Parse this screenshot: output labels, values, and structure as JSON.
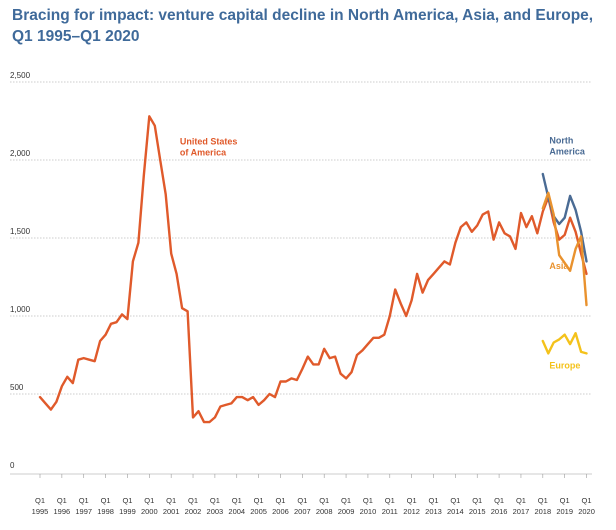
{
  "chart_data": {
    "type": "line",
    "title": "Bracing for impact: venture capital decline in North America, Asia, and Europe, Q1 1995–Q1 2020",
    "xlabel": "",
    "ylabel": "",
    "ylim": [
      0,
      2500
    ],
    "yticks": [
      0,
      500,
      1000,
      1500,
      2000,
      2500
    ],
    "yticklabels": [
      "0",
      "500",
      "1,000",
      "1,500",
      "2,000",
      "2,500"
    ],
    "xlim": [
      1995,
      2020.25
    ],
    "xticks": [
      {
        "q": "Q1",
        "year": "1995",
        "x": 1995
      },
      {
        "q": "Q1",
        "year": "1996",
        "x": 1996
      },
      {
        "q": "Q1",
        "year": "1997",
        "x": 1997
      },
      {
        "q": "Q1",
        "year": "1998",
        "x": 1998
      },
      {
        "q": "Q1",
        "year": "1999",
        "x": 1999
      },
      {
        "q": "Q1",
        "year": "2000",
        "x": 2000
      },
      {
        "q": "Q1",
        "year": "2001",
        "x": 2001
      },
      {
        "q": "Q1",
        "year": "2002",
        "x": 2002
      },
      {
        "q": "Q1",
        "year": "2003",
        "x": 2003
      },
      {
        "q": "Q1",
        "year": "2004",
        "x": 2004
      },
      {
        "q": "Q1",
        "year": "2005",
        "x": 2005
      },
      {
        "q": "Q1",
        "year": "2006",
        "x": 2006
      },
      {
        "q": "Q1",
        "year": "2007",
        "x": 2007
      },
      {
        "q": "Q1",
        "year": "2008",
        "x": 2008
      },
      {
        "q": "Q1",
        "year": "2009",
        "x": 2009
      },
      {
        "q": "Q1",
        "year": "2010",
        "x": 2010
      },
      {
        "q": "Q1",
        "year": "2011",
        "x": 2011
      },
      {
        "q": "Q1",
        "year": "2012",
        "x": 2012
      },
      {
        "q": "Q1",
        "year": "2013",
        "x": 2013
      },
      {
        "q": "Q1",
        "year": "2014",
        "x": 2014
      },
      {
        "q": "Q1",
        "year": "2015",
        "x": 2015
      },
      {
        "q": "Q1",
        "year": "2016",
        "x": 2016
      },
      {
        "q": "Q1",
        "year": "2017",
        "x": 2017
      },
      {
        "q": "Q1",
        "year": "2018",
        "x": 2018
      },
      {
        "q": "Q1",
        "year": "2019",
        "x": 2019
      },
      {
        "q": "Q1",
        "year": "2020",
        "x": 2020
      }
    ],
    "grid": true,
    "series": [
      {
        "name": "United States of America",
        "label_lines": [
          "United States",
          "of America"
        ],
        "label_anchor": [
          2001.4,
          2100
        ],
        "color": "#e05a2b",
        "width": 2.4,
        "x": [
          1995,
          1995.25,
          1995.5,
          1995.75,
          1996,
          1996.25,
          1996.5,
          1996.75,
          1997,
          1997.25,
          1997.5,
          1997.75,
          1998,
          1998.25,
          1998.5,
          1998.75,
          1999,
          1999.25,
          1999.5,
          1999.75,
          2000,
          2000.25,
          2000.5,
          2000.75,
          2001,
          2001.25,
          2001.5,
          2001.75,
          2002,
          2002.25,
          2002.5,
          2002.75,
          2003,
          2003.25,
          2003.5,
          2003.75,
          2004,
          2004.25,
          2004.5,
          2004.75,
          2005,
          2005.25,
          2005.5,
          2005.75,
          2006,
          2006.25,
          2006.5,
          2006.75,
          2007,
          2007.25,
          2007.5,
          2007.75,
          2008,
          2008.25,
          2008.5,
          2008.75,
          2009,
          2009.25,
          2009.5,
          2009.75,
          2010,
          2010.25,
          2010.5,
          2010.75,
          2011,
          2011.25,
          2011.5,
          2011.75,
          2012,
          2012.25,
          2012.5,
          2012.75,
          2013,
          2013.25,
          2013.5,
          2013.75,
          2014,
          2014.25,
          2014.5,
          2014.75,
          2015,
          2015.25,
          2015.5,
          2015.75,
          2016,
          2016.25,
          2016.5,
          2016.75,
          2017,
          2017.25,
          2017.5,
          2017.75,
          2018,
          2018.25,
          2018.5,
          2018.75,
          2019,
          2019.25,
          2019.5,
          2019.75,
          2020
        ],
        "values": [
          480,
          440,
          400,
          450,
          550,
          610,
          570,
          720,
          730,
          720,
          710,
          840,
          880,
          950,
          960,
          1010,
          980,
          1350,
          1470,
          1900,
          2280,
          2220,
          2000,
          1780,
          1400,
          1270,
          1050,
          1030,
          350,
          390,
          320,
          320,
          350,
          420,
          430,
          440,
          480,
          480,
          460,
          480,
          430,
          460,
          500,
          480,
          580,
          580,
          600,
          590,
          660,
          740,
          690,
          690,
          790,
          730,
          740,
          630,
          600,
          640,
          750,
          780,
          820,
          860,
          860,
          880,
          1000,
          1170,
          1080,
          1000,
          1100,
          1270,
          1150,
          1230,
          1270,
          1310,
          1350,
          1330,
          1470,
          1570,
          1600,
          1540,
          1580,
          1650,
          1670,
          1490,
          1600,
          1530,
          1510,
          1430,
          1660,
          1570,
          1640,
          1530,
          1670,
          1760,
          1600,
          1490,
          1520,
          1630,
          1540,
          1400,
          1270
        ]
      },
      {
        "name": "North America",
        "label_lines": [
          "North",
          "America"
        ],
        "label_anchor": [
          2018.3,
          2105
        ],
        "color": "#4a6b94",
        "width": 2.4,
        "x": [
          2018,
          2018.25,
          2018.5,
          2018.75,
          2019,
          2019.25,
          2019.5,
          2019.75,
          2020
        ],
        "values": [
          1910,
          1760,
          1640,
          1590,
          1630,
          1770,
          1680,
          1540,
          1350
        ]
      },
      {
        "name": "Asia",
        "label_lines": [
          "Asia"
        ],
        "label_anchor": [
          2018.3,
          1300
        ],
        "color": "#e9922e",
        "width": 2.4,
        "x": [
          2018,
          2018.25,
          2018.5,
          2018.75,
          2019,
          2019.25,
          2019.5,
          2019.75,
          2020
        ],
        "values": [
          1690,
          1790,
          1650,
          1390,
          1340,
          1290,
          1430,
          1510,
          1070
        ]
      },
      {
        "name": "Europe",
        "label_lines": [
          "Europe"
        ],
        "label_anchor": [
          2018.3,
          665
        ],
        "color": "#f4c21b",
        "width": 2.4,
        "x": [
          2018,
          2018.25,
          2018.5,
          2018.75,
          2019,
          2019.25,
          2019.5,
          2019.75,
          2020
        ],
        "values": [
          840,
          760,
          830,
          850,
          880,
          820,
          890,
          770,
          760
        ]
      }
    ]
  }
}
